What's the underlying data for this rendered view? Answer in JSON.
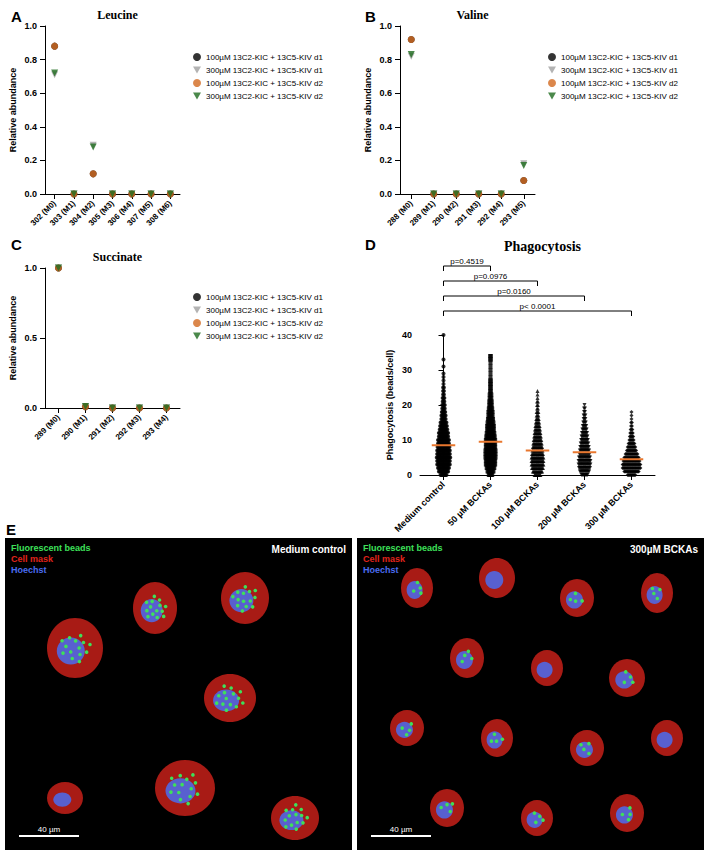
{
  "chart_data": [
    {
      "panel": "A",
      "type": "scatter",
      "title": "Leucine",
      "ylabel": "Relative abundance",
      "categories": [
        "302 (M0)",
        "303 (M1)",
        "304 (M2)",
        "305 (M3)",
        "306 (M4)",
        "307 (M5)",
        "308 (M6)"
      ],
      "series": [
        {
          "name": "100µM 13C2-KIC + 13C5-KIV d1",
          "color": "#000000",
          "marker": "circle",
          "values": [
            0.88,
            0,
            0.12,
            0,
            0,
            0,
            0
          ]
        },
        {
          "name": "300µM 13C2-KIC + 13C5-KIV d1",
          "color": "#a0a0a0",
          "marker": "inverted_triangle",
          "values": [
            0.71,
            0,
            0.29,
            0,
            0,
            0,
            0
          ]
        },
        {
          "name": "100µM 13C2-KIC + 13C5-KIV d2",
          "color": "#d2691e",
          "marker": "circle",
          "values": [
            0.88,
            0,
            0.12,
            0,
            0,
            0,
            0
          ]
        },
        {
          "name": "300µM 13C2-KIC + 13C5-KIV d2",
          "color": "#1e6b1e",
          "marker": "inverted_triangle",
          "values": [
            0.72,
            0,
            0.28,
            0,
            0,
            0,
            0
          ]
        }
      ],
      "ylim": [
        0,
        1
      ],
      "yticks": [
        {
          "value": 0,
          "label": "0.0"
        },
        0.2,
        0.4,
        0.6,
        0.8,
        {
          "value": 1,
          "label": "1.0"
        }
      ],
      "grid": false,
      "legend": "right"
    },
    {
      "panel": "B",
      "type": "scatter",
      "title": "Valine",
      "ylabel": "Relative abundance",
      "categories": [
        "288 (M0)",
        "289 (M1)",
        "290 (M2)",
        "291 (M3)",
        "292 (M4)",
        "293 (M5)"
      ],
      "series": [
        {
          "name": "100µM 13C2-KIC + 13C5-KIV d1",
          "color": "#000000",
          "marker": "circle",
          "values": [
            0.92,
            0,
            0,
            0,
            0,
            0.08
          ]
        },
        {
          "name": "300µM 13C2-KIC + 13C5-KIV d1",
          "color": "#a0a0a0",
          "marker": "inverted_triangle",
          "values": [
            0.82,
            0,
            0,
            0,
            0,
            0.18
          ]
        },
        {
          "name": "100µM 13C2-KIC + 13C5-KIV d2",
          "color": "#d2691e",
          "marker": "circle",
          "values": [
            0.92,
            0,
            0,
            0,
            0,
            0.08
          ]
        },
        {
          "name": "300µM 13C2-KIC + 13C5-KIV d2",
          "color": "#1e6b1e",
          "marker": "inverted_triangle",
          "values": [
            0.83,
            0,
            0,
            0,
            0,
            0.17
          ]
        }
      ],
      "ylim": [
        0,
        1
      ],
      "yticks": [
        {
          "value": 0,
          "label": "0.0"
        },
        0.2,
        0.4,
        0.6,
        0.8,
        {
          "value": 1,
          "label": "1.0"
        }
      ],
      "grid": false,
      "legend": "right"
    },
    {
      "panel": "C",
      "type": "scatter",
      "title": "Succinate",
      "ylabel": "Relative abundance",
      "categories": [
        "289 (M0)",
        "290 (M1)",
        "291 (M2)",
        "292 (M3)",
        "293 (M4)"
      ],
      "series": [
        {
          "name": "100µM 13C2-KIC + 13C5-KIV d1",
          "color": "#000000",
          "marker": "circle",
          "values": [
            1,
            0.01,
            0,
            0,
            0
          ]
        },
        {
          "name": "300µM 13C2-KIC + 13C5-KIV d1",
          "color": "#a0a0a0",
          "marker": "inverted_triangle",
          "values": [
            1,
            0.01,
            0,
            0,
            0
          ]
        },
        {
          "name": "100µM 13C2-KIC + 13C5-KIV d2",
          "color": "#d2691e",
          "marker": "circle",
          "values": [
            1,
            0.01,
            0,
            0,
            0
          ]
        },
        {
          "name": "300µM 13C2-KIC + 13C5-KIV d2",
          "color": "#1e6b1e",
          "marker": "inverted_triangle",
          "values": [
            1,
            0.01,
            0,
            0,
            0
          ]
        }
      ],
      "ylim": [
        0,
        1
      ],
      "yticks": [
        {
          "value": 0,
          "label": "0.0"
        },
        0.5,
        {
          "value": 1,
          "label": "1.0"
        }
      ],
      "grid": false,
      "legend": "right"
    },
    {
      "panel": "D",
      "type": "dot_plot",
      "title": "Phagocytosis",
      "ylabel": "Phagocytosis (beads/cell)",
      "categories": [
        "Medium control",
        "50 µM BCKAs",
        "100 µM BCKAs",
        "200 µM BCKAs",
        "300 µM BCKAs"
      ],
      "markers": [
        "circle",
        "square",
        "triangle",
        "inverted_triangle",
        "diamond"
      ],
      "color": "#000000",
      "value_counts": [
        [
          [
            0,
            8
          ],
          [
            1,
            12
          ],
          [
            2,
            14
          ],
          [
            3,
            16
          ],
          [
            4,
            16
          ],
          [
            5,
            17
          ],
          [
            6,
            16
          ],
          [
            7,
            16
          ],
          [
            8,
            15
          ],
          [
            9,
            14
          ],
          [
            10,
            14
          ],
          [
            11,
            12
          ],
          [
            12,
            12
          ],
          [
            13,
            10
          ],
          [
            14,
            9
          ],
          [
            15,
            8
          ],
          [
            16,
            6
          ],
          [
            17,
            6
          ],
          [
            18,
            5
          ],
          [
            19,
            4
          ],
          [
            20,
            4
          ],
          [
            21,
            3
          ],
          [
            22,
            3
          ],
          [
            23,
            2
          ],
          [
            24,
            2
          ],
          [
            25,
            2
          ],
          [
            26,
            1
          ],
          [
            27,
            1
          ],
          [
            28,
            1
          ],
          [
            29,
            1
          ],
          [
            31,
            1
          ],
          [
            33,
            1
          ],
          [
            40,
            1
          ]
        ],
        [
          [
            0,
            5
          ],
          [
            1,
            8
          ],
          [
            2,
            10
          ],
          [
            3,
            12
          ],
          [
            4,
            12
          ],
          [
            5,
            13
          ],
          [
            6,
            13
          ],
          [
            7,
            13
          ],
          [
            8,
            12
          ],
          [
            9,
            12
          ],
          [
            10,
            12
          ],
          [
            11,
            11
          ],
          [
            12,
            10
          ],
          [
            13,
            9
          ],
          [
            14,
            9
          ],
          [
            15,
            8
          ],
          [
            16,
            7
          ],
          [
            17,
            6
          ],
          [
            18,
            6
          ],
          [
            19,
            5
          ],
          [
            20,
            4
          ],
          [
            21,
            4
          ],
          [
            22,
            3
          ],
          [
            23,
            3
          ],
          [
            24,
            2
          ],
          [
            25,
            2
          ],
          [
            26,
            2
          ],
          [
            27,
            2
          ],
          [
            28,
            1
          ],
          [
            29,
            1
          ],
          [
            30,
            1
          ],
          [
            31,
            1
          ],
          [
            32,
            1
          ],
          [
            33,
            2
          ],
          [
            34,
            2
          ]
        ],
        [
          [
            0,
            8
          ],
          [
            1,
            12
          ],
          [
            2,
            14
          ],
          [
            3,
            15
          ],
          [
            4,
            15
          ],
          [
            5,
            15
          ],
          [
            6,
            14
          ],
          [
            7,
            13
          ],
          [
            8,
            12
          ],
          [
            9,
            11
          ],
          [
            10,
            10
          ],
          [
            11,
            9
          ],
          [
            12,
            8
          ],
          [
            13,
            7
          ],
          [
            14,
            6
          ],
          [
            15,
            5
          ],
          [
            16,
            4
          ],
          [
            17,
            3
          ],
          [
            18,
            3
          ],
          [
            19,
            2
          ],
          [
            20,
            2
          ],
          [
            21,
            2
          ],
          [
            22,
            1
          ],
          [
            23,
            1
          ],
          [
            24,
            1
          ]
        ],
        [
          [
            0,
            8
          ],
          [
            1,
            12
          ],
          [
            2,
            14
          ],
          [
            3,
            15
          ],
          [
            4,
            15
          ],
          [
            5,
            14
          ],
          [
            6,
            13
          ],
          [
            7,
            12
          ],
          [
            8,
            11
          ],
          [
            9,
            10
          ],
          [
            10,
            9
          ],
          [
            11,
            8
          ],
          [
            12,
            7
          ],
          [
            13,
            6
          ],
          [
            14,
            5
          ],
          [
            15,
            4
          ],
          [
            16,
            3
          ],
          [
            17,
            3
          ],
          [
            18,
            2
          ],
          [
            19,
            2
          ],
          [
            20,
            1
          ]
        ],
        [
          [
            0,
            10
          ],
          [
            1,
            18
          ],
          [
            2,
            22
          ],
          [
            3,
            22
          ],
          [
            4,
            20
          ],
          [
            5,
            18
          ],
          [
            6,
            15
          ],
          [
            7,
            12
          ],
          [
            8,
            10
          ],
          [
            9,
            8
          ],
          [
            10,
            6
          ],
          [
            11,
            5
          ],
          [
            12,
            4
          ],
          [
            13,
            3
          ],
          [
            14,
            2
          ],
          [
            15,
            2
          ],
          [
            16,
            1
          ],
          [
            17,
            1
          ],
          [
            18,
            1
          ]
        ]
      ],
      "medians": [
        8.5,
        9.5,
        7,
        6.5,
        4.5
      ],
      "median_color": "#e8772e",
      "p_values": [
        {
          "from": "Medium control",
          "to": "50 µM BCKAs",
          "label": "p=0.4519"
        },
        {
          "from": "Medium control",
          "to": "100 µM BCKAs",
          "label": "p=0.0976"
        },
        {
          "from": "Medium control",
          "to": "200 µM BCKAs",
          "label": "p=0.0160"
        },
        {
          "from": "Medium control",
          "to": "300 µM BCKAs",
          "label": "p< 0.0001"
        }
      ],
      "ylim": [
        0,
        40
      ],
      "yticks": [
        0,
        10,
        20,
        30,
        40
      ],
      "grid": false
    }
  ],
  "panel_e": {
    "panel": "E",
    "channels": [
      {
        "label": "Fluorescent beads",
        "color": "#3ee05a"
      },
      {
        "label": "Cell mask",
        "color": "#e0241c"
      },
      {
        "label": "Hoechst",
        "color": "#4a6cf0"
      }
    ],
    "images": [
      {
        "title": "Medium control",
        "scale_bar": "40 µm"
      },
      {
        "title": "300µM BCKAs",
        "scale_bar": "40 µm"
      }
    ]
  }
}
